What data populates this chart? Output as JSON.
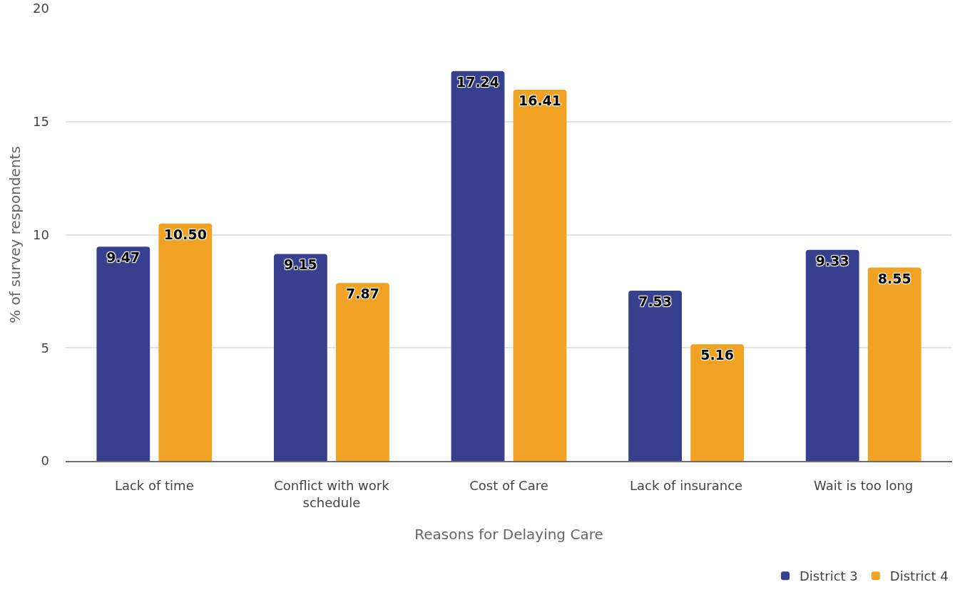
{
  "chart_data": {
    "type": "bar",
    "xlabel": "Reasons for Delaying Care",
    "ylabel": "% of survey respondents",
    "categories": [
      "Lack of time",
      "Conflict with work schedule",
      "Cost of Care",
      "Lack of insurance",
      "Wait is too long"
    ],
    "series": [
      {
        "name": "District 3",
        "color": "#36408e",
        "values": [
          9.47,
          9.15,
          17.24,
          7.53,
          9.33
        ],
        "value_labels": [
          "9.47",
          "9.15",
          "17.24",
          "7.53",
          "9.33"
        ]
      },
      {
        "name": "District 4",
        "color": "#f2a222",
        "values": [
          10.5,
          7.87,
          16.41,
          5.16,
          8.55
        ],
        "value_labels": [
          "10.50",
          "7.87",
          "16.41",
          "5.16",
          "8.55"
        ]
      }
    ],
    "ylim": [
      0,
      20
    ],
    "yticks": [
      0,
      5,
      10,
      15,
      20
    ],
    "grid": "y",
    "legend": "bottom right"
  }
}
